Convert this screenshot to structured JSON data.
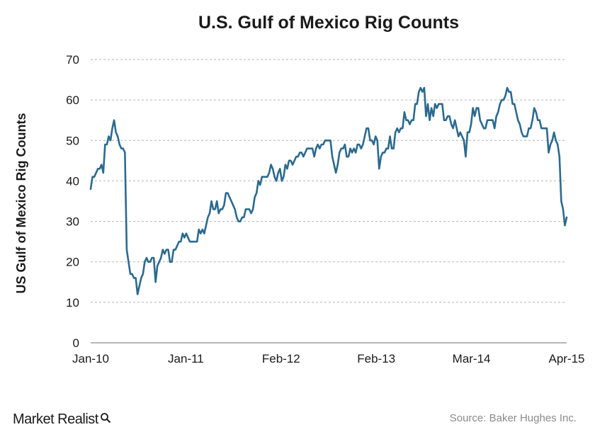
{
  "brand": {
    "name": "Market Realist",
    "icon": "magnifier-icon"
  },
  "source_note": "Source: Baker Hughes Inc.",
  "chart_data": {
    "type": "line",
    "title": "U.S. Gulf of Mexico Rig Counts",
    "xlabel": "",
    "ylabel": "US Gulf of Mexico Rig Counts",
    "ylim": [
      0,
      70
    ],
    "yticks": [
      0,
      10,
      20,
      30,
      40,
      50,
      60,
      70
    ],
    "xtick_labels": [
      "Jan-10",
      "Jan-11",
      "Feb-12",
      "Feb-13",
      "Mar-14",
      "Apr-15"
    ],
    "grid": true,
    "line_color": "#2c6a8f",
    "series": [
      {
        "values": [
          38,
          41,
          41,
          42,
          43,
          43,
          44,
          42,
          49,
          49,
          51,
          50,
          53,
          55,
          52,
          51,
          49,
          48,
          48,
          47,
          23,
          20,
          17,
          17,
          16,
          16,
          12,
          14,
          16,
          17,
          20,
          21,
          20,
          20,
          21,
          21,
          15,
          19,
          20,
          21,
          23,
          22,
          23,
          23,
          20,
          20,
          23,
          23,
          24,
          25,
          25,
          27,
          26,
          27,
          26,
          25,
          25,
          25,
          25,
          25,
          28,
          27,
          28,
          27,
          29,
          31,
          32,
          35,
          33,
          33,
          35,
          32,
          33,
          33,
          34,
          37,
          37,
          36,
          35,
          34,
          33,
          31,
          30,
          30,
          31,
          31,
          33,
          33,
          33,
          32,
          33,
          36,
          37,
          40,
          39,
          41,
          41,
          41,
          41,
          42,
          44,
          43,
          41,
          40,
          42,
          43,
          40,
          41,
          44,
          43,
          45,
          45,
          44,
          45,
          46,
          46,
          47,
          47,
          46,
          47,
          48,
          48,
          48,
          48,
          46,
          48,
          49,
          48,
          49,
          49,
          50,
          50,
          50,
          50,
          46,
          44,
          42,
          44,
          47,
          48,
          48,
          49,
          46,
          46,
          48,
          47,
          48,
          47,
          49,
          49,
          48,
          49,
          51,
          53,
          53,
          50,
          50,
          49,
          51,
          50,
          43,
          46,
          47,
          47,
          48,
          48,
          51,
          48,
          48,
          52,
          53,
          52,
          53,
          53,
          57,
          55,
          55,
          54,
          55,
          55,
          59,
          59,
          62,
          63,
          62,
          63,
          56,
          59,
          55,
          58,
          56,
          59,
          58,
          59,
          59,
          59,
          55,
          55,
          56,
          56,
          54,
          53,
          55,
          53,
          51,
          52,
          51,
          50,
          46,
          52,
          52,
          54,
          58,
          56,
          58,
          58,
          55,
          54,
          53,
          53,
          55,
          55,
          55,
          55,
          53,
          56,
          57,
          59,
          60,
          60,
          61,
          63,
          62,
          62,
          59,
          59,
          57,
          55,
          54,
          52,
          51,
          51,
          51,
          53,
          53,
          55,
          58,
          57,
          55,
          55,
          53,
          53,
          53,
          53,
          47,
          49,
          50,
          52,
          50,
          49,
          46,
          35,
          33,
          29,
          31
        ]
      }
    ]
  }
}
